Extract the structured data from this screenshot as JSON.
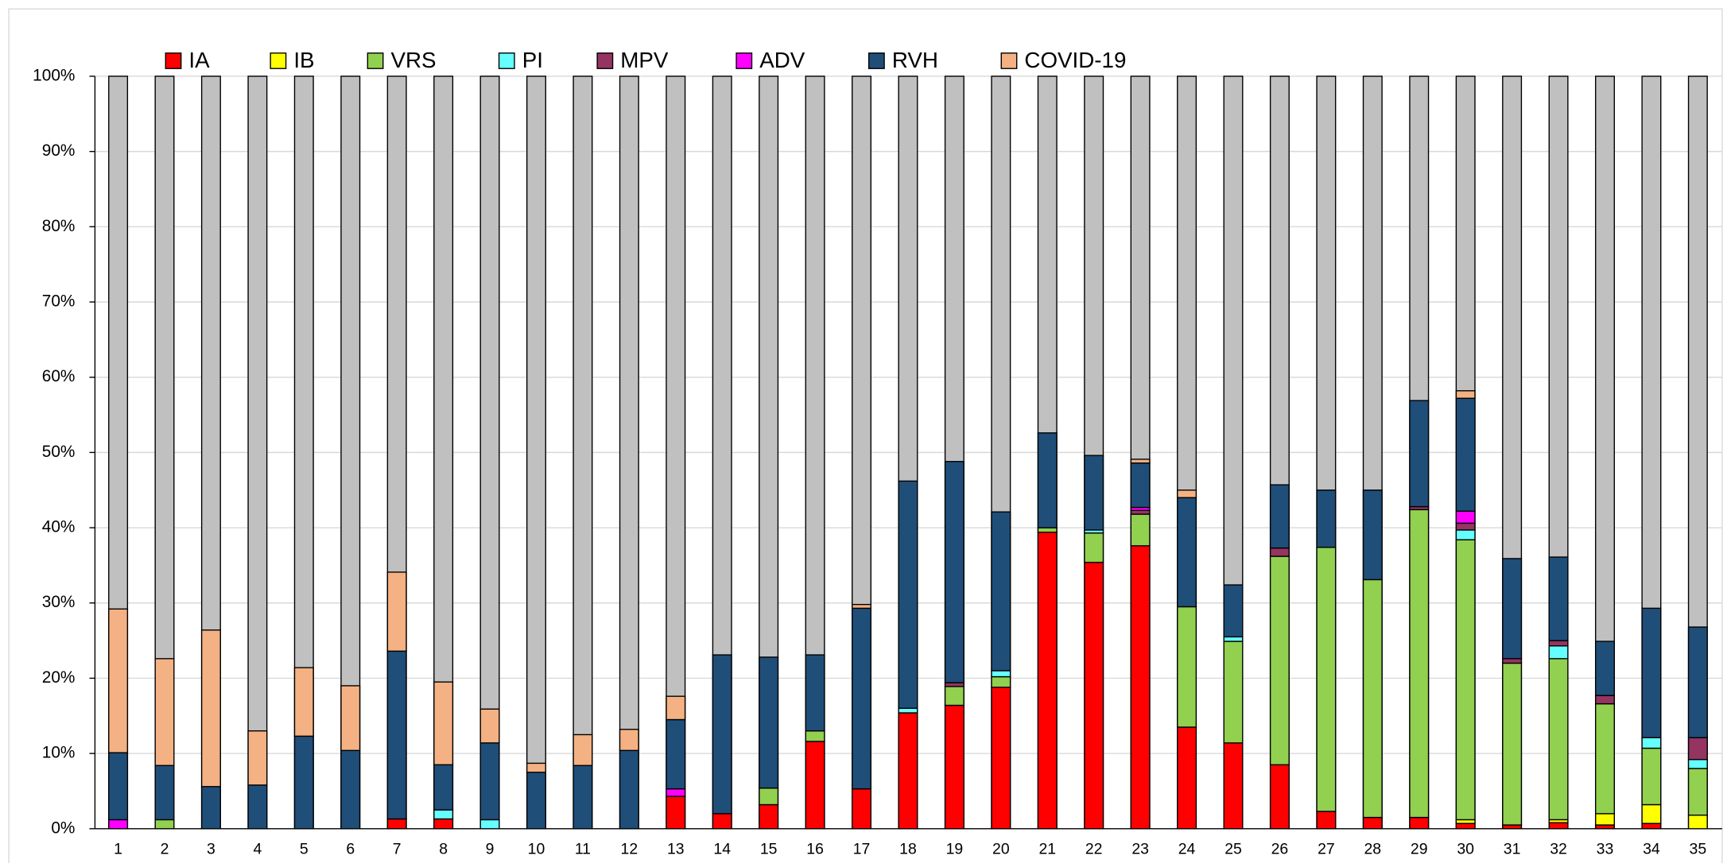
{
  "chart_data": {
    "type": "stacked_bar",
    "categories": [
      "1",
      "2",
      "3",
      "4",
      "5",
      "6",
      "7",
      "8",
      "9",
      "10",
      "11",
      "12",
      "13",
      "14",
      "15",
      "16",
      "17",
      "18",
      "19",
      "20",
      "21",
      "22",
      "23",
      "24",
      "25",
      "26",
      "27",
      "28",
      "29",
      "30",
      "31",
      "32",
      "33",
      "34",
      "35"
    ],
    "series": [
      {
        "name": "IA",
        "color": "#ff0000",
        "values": [
          0,
          0,
          0,
          0,
          0,
          0,
          1.3,
          1.3,
          0,
          0,
          0,
          0,
          4.3,
          2.0,
          3.2,
          11.6,
          5.3,
          15.4,
          16.4,
          18.8,
          39.4,
          35.4,
          37.6,
          13.5,
          11.4,
          8.5,
          2.3,
          1.5,
          1.5,
          0.7,
          0.5,
          0.8,
          0.5,
          0.7,
          0
        ]
      },
      {
        "name": "IB",
        "color": "#ffff00",
        "values": [
          0,
          0,
          0,
          0,
          0,
          0,
          0,
          0,
          0,
          0,
          0,
          0,
          0,
          0,
          0,
          0,
          0,
          0,
          0,
          0,
          0,
          0,
          0,
          0,
          0,
          0,
          0,
          0,
          0,
          0.5,
          0,
          0.4,
          1.5,
          2.5,
          1.8
        ]
      },
      {
        "name": "VRS",
        "color": "#92d050",
        "values": [
          0,
          1.2,
          0,
          0,
          0,
          0,
          0,
          0,
          0,
          0,
          0,
          0,
          0,
          0,
          2.2,
          1.4,
          0,
          0,
          2.5,
          1.4,
          0.6,
          3.9,
          4.2,
          16.0,
          13.5,
          27.7,
          35.1,
          31.6,
          40.9,
          37.2,
          21.5,
          21.4,
          14.6,
          7.5,
          6.2
        ]
      },
      {
        "name": "PI",
        "color": "#66ffff",
        "values": [
          0,
          0,
          0,
          0,
          0,
          0,
          0,
          1.2,
          1.2,
          0,
          0,
          0,
          0,
          0,
          0,
          0,
          0,
          0.6,
          0,
          0.8,
          0,
          0.4,
          0,
          0,
          0.6,
          0,
          0,
          0,
          0,
          1.3,
          0,
          1.7,
          0,
          1.4,
          1.2
        ]
      },
      {
        "name": "MPV",
        "color": "#953461",
        "values": [
          0,
          0,
          0,
          0,
          0,
          0,
          0,
          0,
          0,
          0,
          0,
          0,
          0,
          0,
          0,
          0,
          0,
          0,
          0.5,
          0,
          0,
          0,
          0.5,
          0,
          0,
          1.1,
          0,
          0,
          0.4,
          0.9,
          0.6,
          0.7,
          1.1,
          0,
          2.9
        ]
      },
      {
        "name": "ADV",
        "color": "#ff00ff",
        "values": [
          1.2,
          0,
          0,
          0,
          0,
          0,
          0,
          0,
          0,
          0,
          0,
          0,
          1.0,
          0,
          0,
          0,
          0,
          0,
          0,
          0,
          0,
          0,
          0.4,
          0,
          0,
          0,
          0,
          0,
          0,
          1.6,
          0,
          0,
          0,
          0,
          0
        ]
      },
      {
        "name": "RVH",
        "color": "#1f4e79",
        "values": [
          8.9,
          7.2,
          5.6,
          5.8,
          12.3,
          10.4,
          22.3,
          6.0,
          10.2,
          7.5,
          8.4,
          10.4,
          9.2,
          21.1,
          17.4,
          10.1,
          24.0,
          30.2,
          29.4,
          21.1,
          12.6,
          9.9,
          5.9,
          14.5,
          6.9,
          8.4,
          7.6,
          11.9,
          14.1,
          15.0,
          13.3,
          11.1,
          7.2,
          17.2,
          14.7
        ]
      },
      {
        "name": "COVID-19",
        "color": "#f4b183",
        "values": [
          19.1,
          14.2,
          20.8,
          7.2,
          9.1,
          8.6,
          10.5,
          11.0,
          4.5,
          1.2,
          4.1,
          2.8,
          3.1,
          0,
          0,
          0,
          0.5,
          0,
          0,
          0,
          0,
          0,
          0.5,
          1.0,
          0,
          0,
          0,
          0,
          0,
          1.0,
          0,
          0,
          0,
          0,
          0
        ]
      }
    ],
    "remainder_color": "#c0c0c0",
    "ylim": [
      0,
      100
    ],
    "yticks": [
      {
        "value": 0,
        "label": "0%"
      },
      {
        "value": 10,
        "label": "10%"
      },
      {
        "value": 20,
        "label": "20%"
      },
      {
        "value": 30,
        "label": "30%"
      },
      {
        "value": 40,
        "label": "40%"
      },
      {
        "value": 50,
        "label": "50%"
      },
      {
        "value": 60,
        "label": "60%"
      },
      {
        "value": 70,
        "label": "70%"
      },
      {
        "value": 80,
        "label": "80%"
      },
      {
        "value": 90,
        "label": "90%"
      },
      {
        "value": 100,
        "label": "100%"
      }
    ],
    "grid": true,
    "legend": "top"
  }
}
